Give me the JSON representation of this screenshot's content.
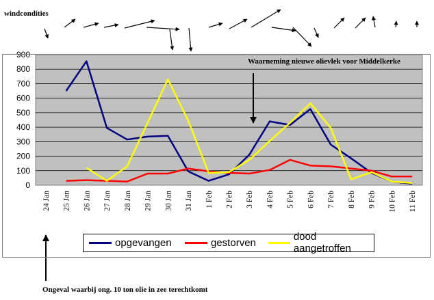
{
  "wind_title": "windcondities",
  "annotation_top": "Waarneming nieuwe olievlek voor Middelkerke",
  "annotation_bottom": "Ongeval waarbij ong. 10 ton olie in zee terechtkomt",
  "chart_data": {
    "type": "line",
    "categories": [
      "24 Jan",
      "25 Jan",
      "26 Jan",
      "27 Jan",
      "28 Jan",
      "29 Jan",
      "30 Jan",
      "31 Jan",
      "1 Feb",
      "2 Feb",
      "3 Feb",
      "4 Feb",
      "5 Feb",
      "6 Feb",
      "7 Feb",
      "8 Feb",
      "9 Feb",
      "10 Feb",
      "11 Feb"
    ],
    "ylim": [
      0,
      900
    ],
    "yticks": [
      0,
      100,
      200,
      300,
      400,
      500,
      600,
      700,
      800,
      900
    ],
    "grid": true,
    "legend_position": "bottom",
    "series": [
      {
        "name": "opgevangen",
        "color": "#000080",
        "values": [
          null,
          650,
          855,
          395,
          315,
          335,
          340,
          95,
          30,
          75,
          210,
          440,
          415,
          525,
          280,
          185,
          85,
          25,
          10
        ]
      },
      {
        "name": "gestorven",
        "color": "#ff0000",
        "values": [
          null,
          30,
          35,
          30,
          25,
          80,
          80,
          115,
          95,
          85,
          80,
          105,
          175,
          135,
          130,
          115,
          100,
          60,
          60
        ]
      },
      {
        "name": "dood aangetroffen",
        "color": "#ffff00",
        "values": [
          null,
          null,
          120,
          30,
          130,
          430,
          730,
          445,
          85,
          90,
          175,
          305,
          430,
          565,
          395,
          40,
          90,
          25,
          15
        ]
      }
    ]
  }
}
